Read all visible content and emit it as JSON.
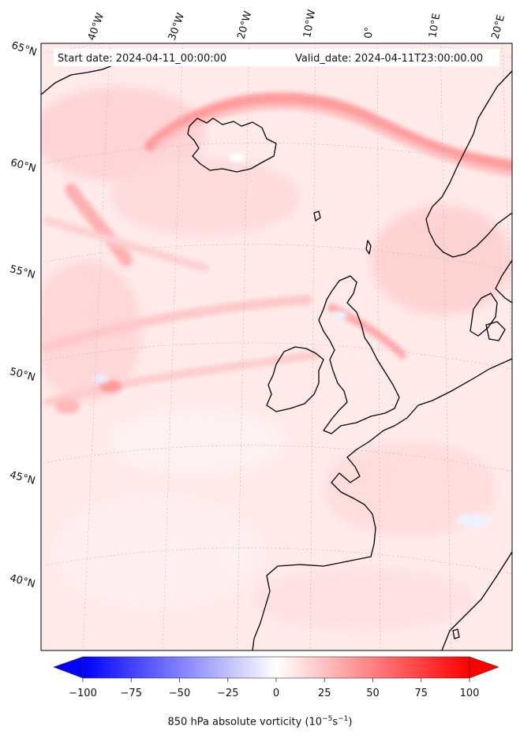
{
  "header": {
    "start_date": "Start date: 2024-04-11_00:00:00",
    "valid_date": "Valid_date: 2024-04-11T23:00:00.00"
  },
  "map": {
    "projection": "conic",
    "region": "North Atlantic / NW Europe",
    "field": "850 hPa absolute vorticity",
    "longitude_labels": [
      "40°W",
      "30°W",
      "20°W",
      "10°W",
      "0°",
      "10°E",
      "20°E"
    ],
    "latitude_labels": [
      "65°N",
      "60°N",
      "55°N",
      "50°N",
      "45°N",
      "40°N"
    ],
    "gridlines": true,
    "coastlines": true
  },
  "colorbar": {
    "ticks": [
      "−100",
      "−75",
      "−50",
      "−25",
      "0",
      "25",
      "50",
      "75",
      "100"
    ],
    "label_prefix": "850 hPa absolute vorticity (10",
    "label_exp1": "−5",
    "label_mid": "s",
    "label_exp2": "−1",
    "label_suffix": ")",
    "vmin": -100,
    "vmax": 100,
    "colormap": "bwr",
    "extend": "both"
  },
  "colors": {
    "negative": "#0000ff",
    "neutral": "#ffffff",
    "positive": "#ff0000",
    "coast": "#000000"
  }
}
